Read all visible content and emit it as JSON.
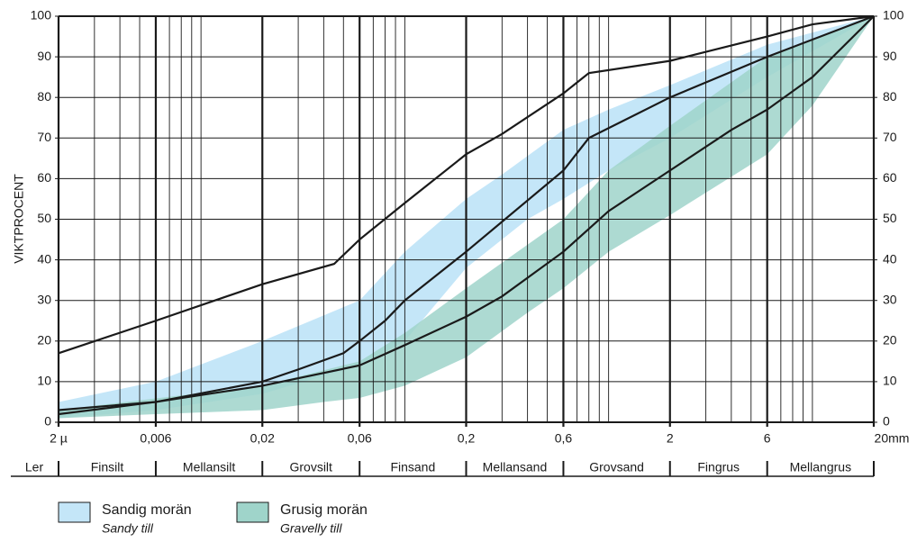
{
  "chart_data": {
    "type": "line",
    "y_label": "VIKTPROCENT",
    "log_x": true,
    "grid": true,
    "xlim": [
      0.002,
      20
    ],
    "ylim": [
      0,
      100
    ],
    "xticks": [
      {
        "value": 0.002,
        "label": "2 µ"
      },
      {
        "value": 0.006,
        "label": "0,006"
      },
      {
        "value": 0.02,
        "label": "0,02"
      },
      {
        "value": 0.06,
        "label": "0,06"
      },
      {
        "value": 0.2,
        "label": "0,2"
      },
      {
        "value": 0.6,
        "label": "0,6"
      },
      2,
      6,
      {
        "value": 20,
        "label": "20mm"
      }
    ],
    "xgrid_minor": [
      0.003,
      0.004,
      0.005,
      0.007,
      0.008,
      0.009,
      0.01,
      0.03,
      0.04,
      0.05,
      0.07,
      0.08,
      0.09,
      0.1,
      0.3,
      0.4,
      0.5,
      0.7,
      0.8,
      0.9,
      1,
      3,
      4,
      5,
      7,
      8,
      9,
      10
    ],
    "yticks": [
      0,
      10,
      20,
      30,
      40,
      50,
      60,
      70,
      80,
      90,
      100
    ],
    "fractions": [
      "Ler",
      "Finsilt",
      "Mellansilt",
      "Grovsilt",
      "Finsand",
      "Mellansand",
      "Grovsand",
      "Fingrus",
      "Mellangrus"
    ],
    "bands": [
      {
        "name": "Sandig morän",
        "name_en": "Sandy till",
        "color": "#c4e6f8",
        "x_upper": [
          0.002,
          0.006,
          0.02,
          0.06,
          0.1,
          0.2,
          0.3,
          0.6,
          1,
          2,
          6,
          20
        ],
        "upper": [
          5,
          10,
          20,
          30,
          42,
          55,
          61,
          72,
          77,
          83,
          93,
          100
        ],
        "x_lower": [
          0.002,
          0.006,
          0.02,
          0.06,
          0.1,
          0.2,
          0.4,
          0.6,
          1,
          2,
          6,
          20
        ],
        "lower": [
          1,
          3,
          7,
          14,
          20,
          38,
          50,
          55,
          62,
          70,
          85,
          100
        ]
      },
      {
        "name": "Grusig morän",
        "name_en": "Gravelly till",
        "color": "#9fd4ca",
        "x_upper": [
          0.002,
          0.02,
          0.06,
          0.1,
          0.2,
          0.6,
          1,
          2,
          6,
          20
        ],
        "upper": [
          3,
          9,
          15,
          22,
          33,
          50,
          62,
          73,
          90,
          100
        ],
        "x_lower": [
          0.002,
          0.006,
          0.02,
          0.04,
          0.06,
          0.1,
          0.2,
          0.4,
          0.6,
          1,
          2,
          6,
          10,
          20
        ],
        "lower": [
          1,
          2,
          3,
          5,
          6,
          9,
          16,
          27,
          33,
          42,
          51,
          66,
          78,
          100
        ]
      }
    ],
    "lines_color": "#1a1a1a",
    "lines": [
      {
        "x": [
          0.002,
          0.006,
          0.02,
          0.045,
          0.06,
          0.1,
          0.2,
          0.3,
          0.6,
          0.8,
          2,
          6,
          10,
          20
        ],
        "values": [
          17,
          25,
          34,
          39,
          45,
          54,
          66,
          71,
          81,
          86,
          89,
          95,
          98,
          100
        ]
      },
      {
        "x": [
          0.002,
          0.006,
          0.02,
          0.03,
          0.05,
          0.06,
          0.08,
          0.1,
          0.2,
          0.6,
          0.8,
          2,
          6,
          20
        ],
        "values": [
          3,
          5,
          10,
          13,
          17,
          20,
          25,
          30,
          42,
          62,
          70,
          80,
          90,
          100
        ]
      },
      {
        "x": [
          0.002,
          0.006,
          0.02,
          0.06,
          0.1,
          0.2,
          0.3,
          0.6,
          1,
          2,
          4,
          6,
          10,
          20
        ],
        "values": [
          2,
          5,
          9,
          14,
          19,
          26,
          31,
          42,
          52,
          62,
          72,
          77,
          85,
          100
        ]
      }
    ]
  }
}
